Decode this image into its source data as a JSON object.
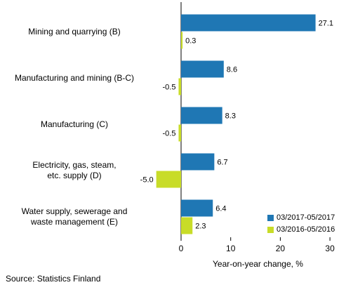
{
  "chart_data": {
    "type": "bar",
    "orientation": "horizontal",
    "categories": [
      "Mining and quarrying (B)",
      "Manufacturing and mining (B-C)",
      "Manufacturing (C)",
      "Electricity, gas, steam, etc. supply (D)",
      "Water supply, sewerage and waste management (E)"
    ],
    "category_lines": [
      [
        "Mining and quarrying (B)"
      ],
      [
        "Manufacturing and mining (B-C)"
      ],
      [
        "Manufacturing (C)"
      ],
      [
        "Electricity, gas, steam,",
        "etc. supply (D)"
      ],
      [
        "Water supply, sewerage and",
        "waste management (E)"
      ]
    ],
    "series": [
      {
        "name": "03/2017-05/2017",
        "color": "#1f77b4",
        "values": [
          27.1,
          8.6,
          8.3,
          6.7,
          6.4
        ],
        "labels": [
          "27.1",
          "8.6",
          "8.3",
          "6.7",
          "6.4"
        ]
      },
      {
        "name": "03/2016-05/2016",
        "color": "#c8dc28",
        "values": [
          0.3,
          -0.5,
          -0.5,
          -5.0,
          2.3
        ],
        "labels": [
          "0.3",
          "-0.5",
          "-0.5",
          "-5.0",
          "2.3"
        ]
      }
    ],
    "xlabel": "Year-on-year change, %",
    "xlim": [
      -8,
      31
    ],
    "xticks": [
      0,
      10,
      20,
      30
    ],
    "xtick_labels": [
      "0",
      "10",
      "20",
      "30"
    ],
    "legend_position": "bottom-right",
    "grid": false
  },
  "source": "Source: Statistics Finland"
}
